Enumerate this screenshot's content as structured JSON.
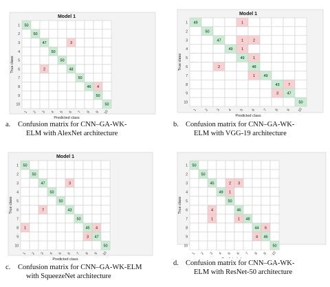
{
  "colors": {
    "diagonal": "#c9ecd3",
    "offdiagonal": "#f8d0d2",
    "empty": "#ffffff",
    "grid": "#c8c8c8",
    "frame": "#f3f3f3"
  },
  "chart_data": [
    {
      "type": "heatmap",
      "title": "Model 1",
      "xlabel": "Predicted class",
      "ylabel": "True class",
      "classes": [
        "1",
        "2",
        "3",
        "4",
        "5",
        "6",
        "7",
        "8",
        "9",
        "10"
      ],
      "cells": [
        [
          1,
          1,
          50
        ],
        [
          2,
          2,
          50
        ],
        [
          3,
          3,
          47
        ],
        [
          3,
          6,
          3
        ],
        [
          4,
          4,
          50
        ],
        [
          5,
          5,
          50
        ],
        [
          6,
          3,
          2
        ],
        [
          6,
          6,
          48
        ],
        [
          7,
          7,
          50
        ],
        [
          8,
          8,
          46
        ],
        [
          8,
          9,
          4
        ],
        [
          9,
          9,
          50
        ],
        [
          10,
          10,
          50
        ]
      ]
    },
    {
      "type": "heatmap",
      "title": "Model 1",
      "xlabel": "Predicted class",
      "ylabel": "True class",
      "classes": [
        "1",
        "2",
        "3",
        "4",
        "5",
        "6",
        "7",
        "8",
        "9",
        "10"
      ],
      "cells": [
        [
          1,
          1,
          49
        ],
        [
          1,
          5,
          1
        ],
        [
          2,
          2,
          50
        ],
        [
          3,
          3,
          47
        ],
        [
          3,
          5,
          1
        ],
        [
          3,
          6,
          2
        ],
        [
          4,
          4,
          49
        ],
        [
          4,
          5,
          1
        ],
        [
          5,
          5,
          49
        ],
        [
          5,
          6,
          1
        ],
        [
          6,
          3,
          2
        ],
        [
          6,
          6,
          48
        ],
        [
          7,
          6,
          1
        ],
        [
          7,
          7,
          49
        ],
        [
          8,
          8,
          43
        ],
        [
          8,
          9,
          7
        ],
        [
          9,
          8,
          3
        ],
        [
          9,
          9,
          47
        ],
        [
          10,
          10,
          50
        ]
      ]
    },
    {
      "type": "heatmap",
      "title": "Model 1",
      "xlabel": "Predicted class",
      "ylabel": "True class",
      "classes": [
        "1",
        "2",
        "3",
        "4",
        "5",
        "6",
        "7",
        "8",
        "9",
        "10"
      ],
      "cells": [
        [
          1,
          1,
          50
        ],
        [
          2,
          2,
          50
        ],
        [
          3,
          3,
          47
        ],
        [
          3,
          6,
          3
        ],
        [
          4,
          4,
          50
        ],
        [
          5,
          5,
          50
        ],
        [
          6,
          3,
          7
        ],
        [
          6,
          6,
          43
        ],
        [
          7,
          7,
          50
        ],
        [
          8,
          1,
          1
        ],
        [
          8,
          8,
          45
        ],
        [
          8,
          9,
          4
        ],
        [
          9,
          8,
          3
        ],
        [
          9,
          9,
          47
        ],
        [
          10,
          10,
          50
        ]
      ]
    },
    {
      "type": "heatmap",
      "title": "",
      "xlabel": "Predicted class",
      "ylabel": "True class",
      "classes": [
        "1",
        "2",
        "3",
        "4",
        "5",
        "6",
        "7",
        "8",
        "9",
        "10"
      ],
      "cells": [
        [
          1,
          1,
          50
        ],
        [
          2,
          2,
          50
        ],
        [
          3,
          3,
          45
        ],
        [
          3,
          5,
          2
        ],
        [
          3,
          6,
          3
        ],
        [
          4,
          4,
          49
        ],
        [
          4,
          5,
          1
        ],
        [
          5,
          5,
          50
        ],
        [
          6,
          3,
          4
        ],
        [
          6,
          6,
          46
        ],
        [
          7,
          3,
          1
        ],
        [
          7,
          6,
          1
        ],
        [
          7,
          7,
          48
        ],
        [
          8,
          8,
          44
        ],
        [
          8,
          9,
          6
        ],
        [
          9,
          8,
          4
        ],
        [
          9,
          9,
          46
        ],
        [
          10,
          10,
          50
        ]
      ]
    }
  ],
  "captions": [
    {
      "letter": "a.",
      "line1": "Confusion matrix for CNN–GA-WK-",
      "line2": "ELM with AlexNet architecture"
    },
    {
      "letter": "b.",
      "line1": "Confusion matrix for CNN–GA-WK-",
      "line2": "ELM with VGG-19 architecture"
    },
    {
      "letter": "c.",
      "line1": "Confusion matrix for CNN–GA-WK-ELM",
      "line2": "with SqueezeNet architecture"
    },
    {
      "letter": "d.",
      "line1": "Confusion matrix for CNN–GA-WK-",
      "line2": "ELM with ResNet-50 architecture"
    }
  ]
}
